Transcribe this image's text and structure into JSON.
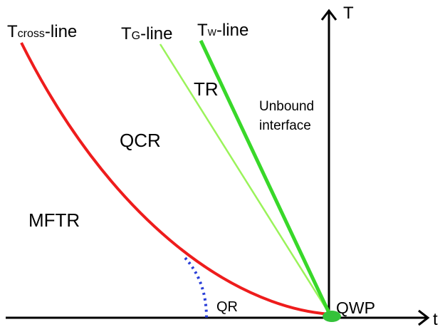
{
  "diagram": {
    "axes": {
      "horizontal_label": "t",
      "vertical_label": "T"
    },
    "lines": {
      "cross": {
        "main": "T",
        "sub": "cross",
        "suffix": "-line",
        "color": "#ee1c1c"
      },
      "g": {
        "main": "T",
        "sub": "G",
        "suffix": "-line",
        "color": "#9af35a"
      },
      "w": {
        "main": "T",
        "sub": "W",
        "suffix": "-line",
        "color": "#38d829"
      }
    },
    "regions": {
      "tr": "TR",
      "qcr": "QCR",
      "mftr": "MFTR",
      "qr": "QR",
      "unbound_line1": "Unbound",
      "unbound_line2": "interface",
      "qwp": "QWP"
    },
    "colors": {
      "axis": "#000000",
      "qr_boundary": "#2a3fd8",
      "qwp_point": "#34c23a"
    }
  }
}
